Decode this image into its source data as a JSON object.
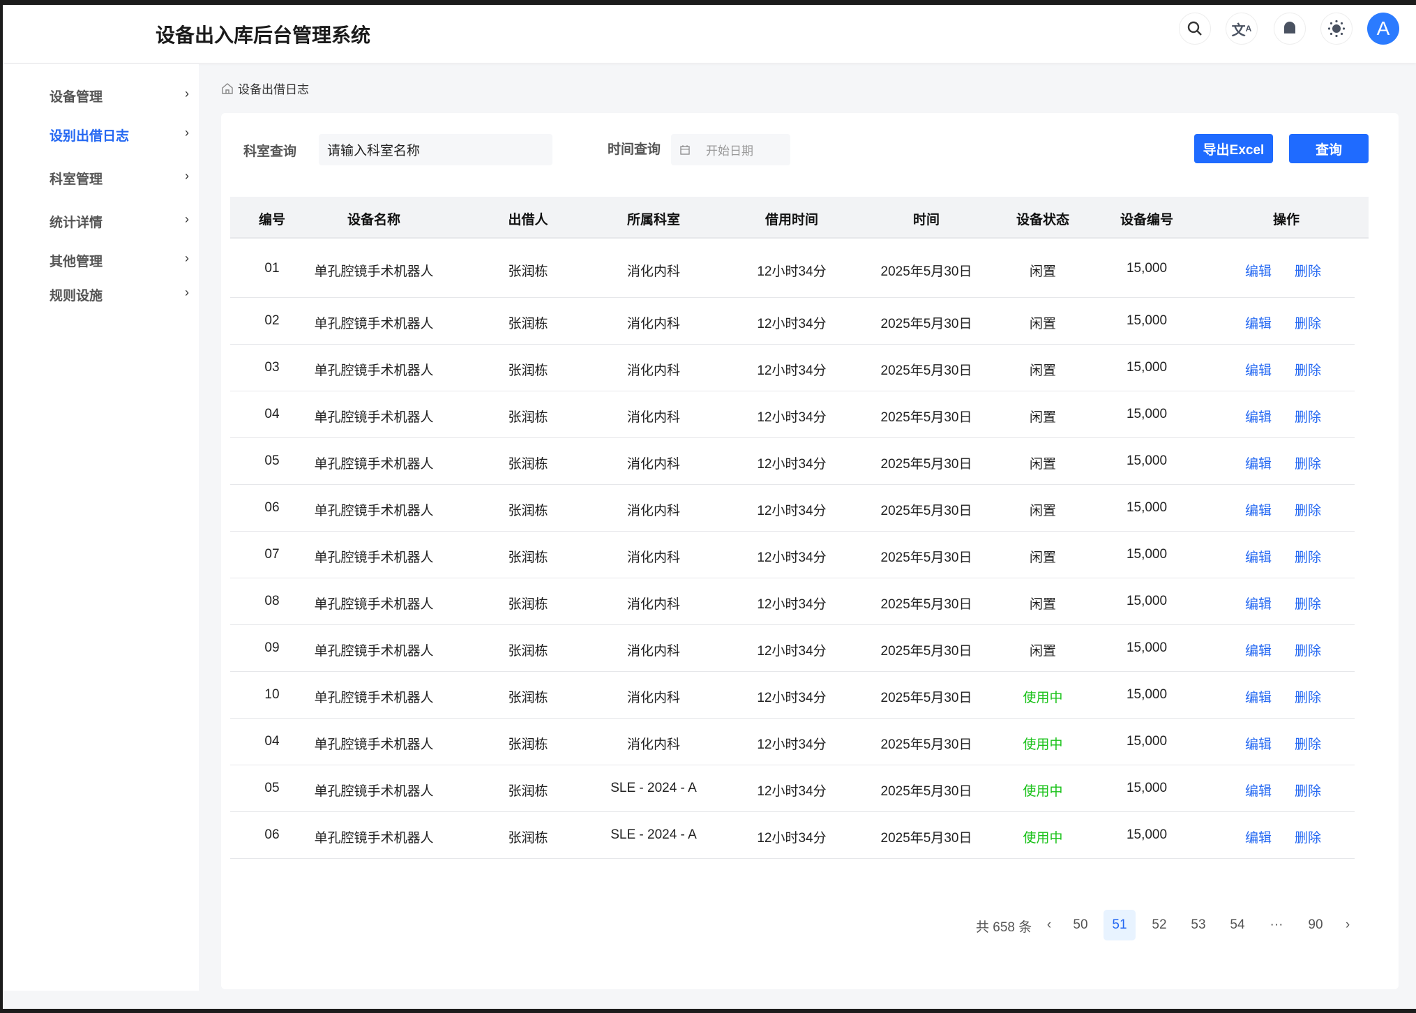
{
  "header": {
    "title": "设备出入库后台管理系统",
    "icons": [
      "search-icon",
      "translate-icon",
      "bell-icon",
      "theme-sun-icon"
    ],
    "avatar": "A"
  },
  "sidebar": {
    "items": [
      {
        "label": "设备管理",
        "active": false
      },
      {
        "label": "设别出借日志",
        "active": true
      },
      {
        "label": "科室管理",
        "active": false
      },
      {
        "label": "统计详情",
        "active": false
      },
      {
        "label": "其他管理",
        "active": false
      },
      {
        "label": "规则设施",
        "active": false
      }
    ]
  },
  "breadcrumb": "设备出借日志",
  "filters": {
    "dept_label": "科室查询",
    "dept_placeholder": "请输入科室名称",
    "time_label": "时间查询",
    "date_placeholder": "开始日期",
    "export_label": "导出Excel",
    "query_label": "查询"
  },
  "table": {
    "columns": [
      "编号",
      "设备名称",
      "出借人",
      "所属科室",
      "借用时间",
      "时间",
      "设备状态",
      "设备编号",
      "操作"
    ],
    "edit_label": "编辑",
    "delete_label": "删除",
    "rows": [
      [
        "01",
        "单孔腔镜手术机器人",
        "张润栋",
        "消化内科",
        "12小时34分",
        "2025年5月30日",
        "闲置",
        "15,000"
      ],
      [
        "02",
        "单孔腔镜手术机器人",
        "张润栋",
        "消化内科",
        "12小时34分",
        "2025年5月30日",
        "闲置",
        "15,000"
      ],
      [
        "03",
        "单孔腔镜手术机器人",
        "张润栋",
        "消化内科",
        "12小时34分",
        "2025年5月30日",
        "闲置",
        "15,000"
      ],
      [
        "04",
        "单孔腔镜手术机器人",
        "张润栋",
        "消化内科",
        "12小时34分",
        "2025年5月30日",
        "闲置",
        "15,000"
      ],
      [
        "05",
        "单孔腔镜手术机器人",
        "张润栋",
        "消化内科",
        "12小时34分",
        "2025年5月30日",
        "闲置",
        "15,000"
      ],
      [
        "06",
        "单孔腔镜手术机器人",
        "张润栋",
        "消化内科",
        "12小时34分",
        "2025年5月30日",
        "闲置",
        "15,000"
      ],
      [
        "07",
        "单孔腔镜手术机器人",
        "张润栋",
        "消化内科",
        "12小时34分",
        "2025年5月30日",
        "闲置",
        "15,000"
      ],
      [
        "08",
        "单孔腔镜手术机器人",
        "张润栋",
        "消化内科",
        "12小时34分",
        "2025年5月30日",
        "闲置",
        "15,000"
      ],
      [
        "09",
        "单孔腔镜手术机器人",
        "张润栋",
        "消化内科",
        "12小时34分",
        "2025年5月30日",
        "闲置",
        "15,000"
      ],
      [
        "10",
        "单孔腔镜手术机器人",
        "张润栋",
        "消化内科",
        "12小时34分",
        "2025年5月30日",
        "使用中",
        "15,000"
      ],
      [
        "04",
        "单孔腔镜手术机器人",
        "张润栋",
        "消化内科",
        "12小时34分",
        "2025年5月30日",
        "使用中",
        "15,000"
      ],
      [
        "05",
        "单孔腔镜手术机器人",
        "张润栋",
        "SLE - 2024 - A",
        "12小时34分",
        "2025年5月30日",
        "使用中",
        "15,000"
      ],
      [
        "06",
        "单孔腔镜手术机器人",
        "张润栋",
        "SLE - 2024 - A",
        "12小时34分",
        "2025年5月30日",
        "使用中",
        "15,000"
      ]
    ]
  },
  "pagination": {
    "total": "共 658 条",
    "pages": [
      "50",
      "51",
      "52",
      "53",
      "54",
      "···",
      "90"
    ],
    "current": "51"
  },
  "colors": {
    "accent": "#1f6bff",
    "in_use": "#19c219"
  }
}
